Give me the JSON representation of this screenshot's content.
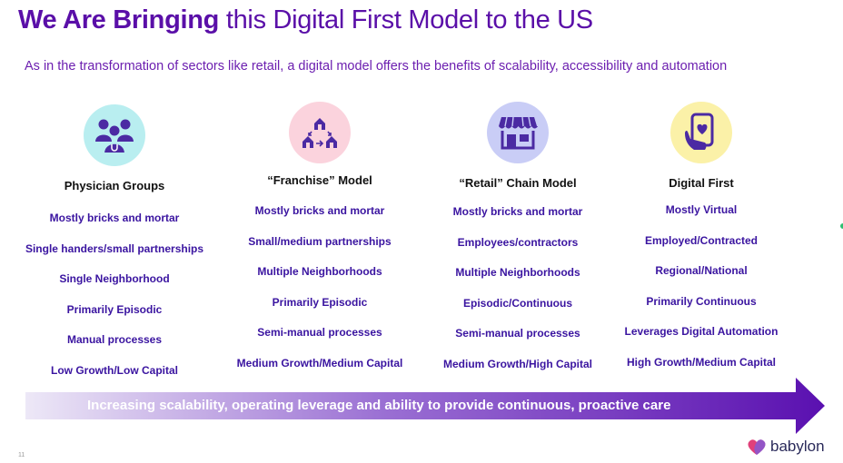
{
  "title": {
    "bold": "We Are Bringing",
    "rest": " this Digital First Model to the US"
  },
  "subtitle": "As in the transformation of sectors like retail, a digital model offers the benefits of scalability, accessibility and automation",
  "colors": {
    "title": "#5a0fa8",
    "items": "#3a14a0",
    "arrow_start": "#ede8f7",
    "arrow_end": "#5a10b0"
  },
  "columns": [
    {
      "title": "Physician Groups",
      "icon": "people-group-icon",
      "icon_bg": "#b9eef0",
      "items": [
        "Mostly bricks and mortar",
        "Single handers/small partnerships",
        "Single Neighborhood",
        "Primarily Episodic",
        "Manual processes",
        "Low Growth/Low Capital"
      ]
    },
    {
      "title": "“Franchise” Model",
      "icon": "houses-network-icon",
      "icon_bg": "#fbd3dd",
      "items": [
        "Mostly bricks and mortar",
        "Small/medium partnerships",
        "Multiple Neighborhoods",
        "Primarily Episodic",
        "Semi-manual processes",
        "Medium Growth/Medium Capital"
      ]
    },
    {
      "title": "“Retail” Chain Model",
      "icon": "storefront-icon",
      "icon_bg": "#c9cdf6",
      "items": [
        "Mostly bricks and mortar",
        "Employees/contractors",
        "Multiple Neighborhoods",
        "Episodic/Continuous",
        "Semi-manual processes",
        "Medium Growth/High Capital"
      ]
    },
    {
      "title": "Digital First",
      "icon": "phone-heart-icon",
      "icon_bg": "#fbf1a8",
      "items": [
        "Mostly Virtual",
        "Employed/Contracted",
        "Regional/National",
        "Primarily Continuous",
        "Leverages Digital Automation",
        "High Growth/Medium Capital"
      ]
    }
  ],
  "arrow_label": "Increasing scalability, operating leverage and ability to provide continuous, proactive care",
  "page_number": "11",
  "logo_text": "babylon"
}
